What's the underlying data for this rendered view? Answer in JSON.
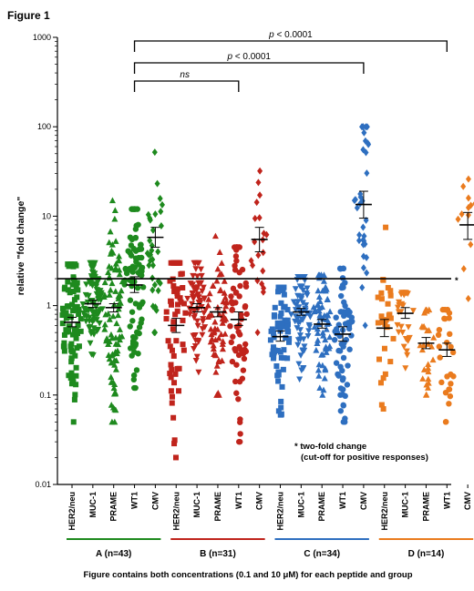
{
  "figure_title": "Figure 1",
  "caption": "Figure contains both concentrations (0.1 and 10 μM) for each peptide and group",
  "chart_data": {
    "type": "scatter",
    "subtype": "dot-plot with mean ± SEM",
    "ylabel": "relative \"fold change\"",
    "yscale": "log",
    "ylim": [
      0.01,
      1000
    ],
    "yticks": [
      "0.01",
      "0.1",
      "1",
      "10",
      "100",
      "1000"
    ],
    "categories": [
      "HER2/neu",
      "MUC-1",
      "PRAME",
      "WT1",
      "CMV"
    ],
    "threshold": {
      "value": 2,
      "label": "*"
    },
    "annotation": {
      "line1": "* two-fold change",
      "line2": "(cut-off for positive responses)"
    },
    "comparisons": [
      {
        "from_group": 0,
        "to_group": 1,
        "category": "WT1",
        "label_prefix": "",
        "label_italic": "ns",
        "label_rest": ""
      },
      {
        "from_group": 0,
        "to_group": 2,
        "category": "CMV",
        "label_prefix": "",
        "label_italic": "p",
        "label_rest": " < 0.0001"
      },
      {
        "from_group": 0,
        "to_group": 3,
        "category": "WT1",
        "label_prefix": "",
        "label_italic": "p",
        "label_rest": " < 0.0001"
      }
    ],
    "groups": [
      {
        "label": "A (n=43)",
        "color": "#1e8a1e",
        "series": [
          {
            "category": "HER2/neu",
            "marker": "square",
            "n": 86,
            "mean": 0.65,
            "sem_low": 0.58,
            "sem_high": 0.74,
            "min": 0.05,
            "max": 2.9
          },
          {
            "category": "MUC-1",
            "marker": "triangle-down",
            "n": 86,
            "mean": 1.05,
            "sem_low": 0.95,
            "sem_high": 1.15,
            "min": 0.28,
            "max": 3.0
          },
          {
            "category": "PRAME",
            "marker": "triangle-up",
            "n": 86,
            "mean": 0.95,
            "sem_low": 0.85,
            "sem_high": 1.05,
            "min": 0.05,
            "max": 15
          },
          {
            "category": "WT1",
            "marker": "circle",
            "n": 86,
            "mean": 1.7,
            "sem_low": 1.4,
            "sem_high": 2.1,
            "min": 0.12,
            "max": 12
          },
          {
            "category": "CMV",
            "marker": "diamond",
            "n": 34,
            "mean": 5.8,
            "sem_low": 4.5,
            "sem_high": 7.5,
            "min": 0.5,
            "max": 52
          }
        ]
      },
      {
        "label": "B (n=31)",
        "color": "#c0241c",
        "series": [
          {
            "category": "HER2/neu",
            "marker": "square",
            "n": 62,
            "mean": 0.6,
            "sem_low": 0.5,
            "sem_high": 0.72,
            "min": 0.02,
            "max": 3.0
          },
          {
            "category": "MUC-1",
            "marker": "triangle-down",
            "n": 62,
            "mean": 0.95,
            "sem_low": 0.85,
            "sem_high": 1.05,
            "min": 0.18,
            "max": 3.0
          },
          {
            "category": "PRAME",
            "marker": "triangle-up",
            "n": 62,
            "mean": 0.85,
            "sem_low": 0.75,
            "sem_high": 0.95,
            "min": 0.1,
            "max": 6
          },
          {
            "category": "WT1",
            "marker": "circle",
            "n": 62,
            "mean": 0.7,
            "sem_low": 0.6,
            "sem_high": 0.85,
            "min": 0.03,
            "max": 4.5
          },
          {
            "category": "CMV",
            "marker": "diamond",
            "n": 20,
            "mean": 5.5,
            "sem_low": 4.0,
            "sem_high": 7.5,
            "min": 0.5,
            "max": 32
          }
        ]
      },
      {
        "label": "C (n=34)",
        "color": "#2e6fc0",
        "series": [
          {
            "category": "HER2/neu",
            "marker": "square",
            "n": 68,
            "mean": 0.45,
            "sem_low": 0.4,
            "sem_high": 0.52,
            "min": 0.06,
            "max": 1.6
          },
          {
            "category": "MUC-1",
            "marker": "triangle-down",
            "n": 68,
            "mean": 0.85,
            "sem_low": 0.78,
            "sem_high": 0.93,
            "min": 0.15,
            "max": 2.1
          },
          {
            "category": "PRAME",
            "marker": "triangle-up",
            "n": 68,
            "mean": 0.62,
            "sem_low": 0.56,
            "sem_high": 0.7,
            "min": 0.1,
            "max": 2.2
          },
          {
            "category": "WT1",
            "marker": "circle",
            "n": 68,
            "mean": 0.48,
            "sem_low": 0.4,
            "sem_high": 0.58,
            "min": 0.05,
            "max": 2.6
          },
          {
            "category": "CMV",
            "marker": "diamond",
            "n": 34,
            "mean": 13.5,
            "sem_low": 9.5,
            "sem_high": 19,
            "min": 0.6,
            "max": 100
          }
        ]
      },
      {
        "label": "D (n=14)",
        "color": "#ea7b1e",
        "series": [
          {
            "category": "HER2/neu",
            "marker": "square",
            "n": 28,
            "mean": 0.56,
            "sem_low": 0.45,
            "sem_high": 0.7,
            "min": 0.07,
            "max": 7.5
          },
          {
            "category": "MUC-1",
            "marker": "triangle-down",
            "n": 28,
            "mean": 0.82,
            "sem_low": 0.72,
            "sem_high": 0.95,
            "min": 0.2,
            "max": 1.4
          },
          {
            "category": "PRAME",
            "marker": "triangle-up",
            "n": 28,
            "mean": 0.38,
            "sem_low": 0.33,
            "sem_high": 0.44,
            "min": 0.1,
            "max": 0.9
          },
          {
            "category": "WT1",
            "marker": "circle",
            "n": 28,
            "mean": 0.32,
            "sem_low": 0.27,
            "sem_high": 0.38,
            "min": 0.05,
            "max": 0.9
          },
          {
            "category": "CMV",
            "marker": "diamond",
            "n": 12,
            "mean": 8.0,
            "sem_low": 5.5,
            "sem_high": 11,
            "min": 1.2,
            "max": 26
          }
        ]
      }
    ]
  }
}
